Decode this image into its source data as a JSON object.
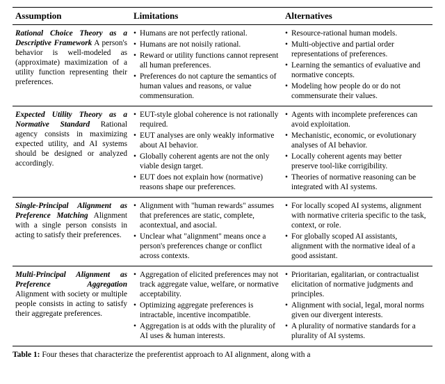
{
  "table": {
    "headers": [
      "Assumption",
      "Limitations",
      "Alternatives"
    ],
    "rows": [
      {
        "title": "Rational Choice Theory as a Descriptive Framework",
        "desc": "A person's behavior is well-modeled as (approximate) maximization of a utility function representing their preferences.",
        "limitations": [
          "Humans are not perfectly rational.",
          "Humans are not noisily rational.",
          "Reward or utility functions cannot represent all human preferences.",
          "Preferences do not capture the semantics of human values and reasons, or value commensuration."
        ],
        "alternatives": [
          "Resource-rational human models.",
          "Multi-objective and partial order representations of preferences.",
          "Learning the semantics of evaluative and normative concepts.",
          "Modeling how people do or do not commensurate their values."
        ]
      },
      {
        "title": "Expected Utility Theory as a Normative Standard",
        "desc": "Rational agency consists in maximizing expected utility, and AI systems should be designed or analyzed accordingly.",
        "limitations": [
          "EUT-style global coherence is not rationally required.",
          "EUT analyses are only weakly informative about AI behavior.",
          "Globally coherent agents are not the only viable design target.",
          "EUT does not explain how (normative) reasons shape our preferences."
        ],
        "alternatives": [
          "Agents with incomplete preferences can avoid exploitation.",
          "Mechanistic, economic, or evolutionary analyses of AI behavior.",
          "Locally coherent agents may better preserve tool-like corrigibility.",
          "Theories of normative reasoning can be integrated with AI systems."
        ]
      },
      {
        "title": "Single-Principal Alignment as Preference Matching",
        "desc": "Alignment with a single person consists in acting to satisfy their preferences.",
        "limitations": [
          "Alignment with \"human rewards\" assumes that preferences are static, complete, acontextual, and asocial.",
          "Unclear what \"alignment\" means once a person's preferences change or conflict across contexts."
        ],
        "alternatives": [
          "For locally scoped AI systems, alignment with normative criteria specific to the task, context, or role.",
          "For globally scoped AI assistants, alignment with the normative ideal of a good assistant."
        ]
      },
      {
        "title": "Multi-Principal Alignment as Preference Aggregation",
        "desc": "Alignment with society or multiple people consists in acting to satisfy their aggregate preferences.",
        "limitations": [
          "Aggregation of elicited preferences may not track aggregate value, welfare, or normative acceptability.",
          "Optimizing aggregate preferences is intractable, incentive incompatible.",
          "Aggregation is at odds with the plurality of AI uses & human interests."
        ],
        "alternatives": [
          "Prioritarian, egalitarian, or contractualist elicitation of normative judgments and principles.",
          "Alignment with social, legal, moral norms given our divergent interests.",
          "A plurality of normative standards for a plurality of AI systems."
        ]
      }
    ]
  },
  "caption": {
    "label": "Table 1:",
    "text": " Four theses that characterize the preferentist approach to AI alignment, along with a"
  }
}
